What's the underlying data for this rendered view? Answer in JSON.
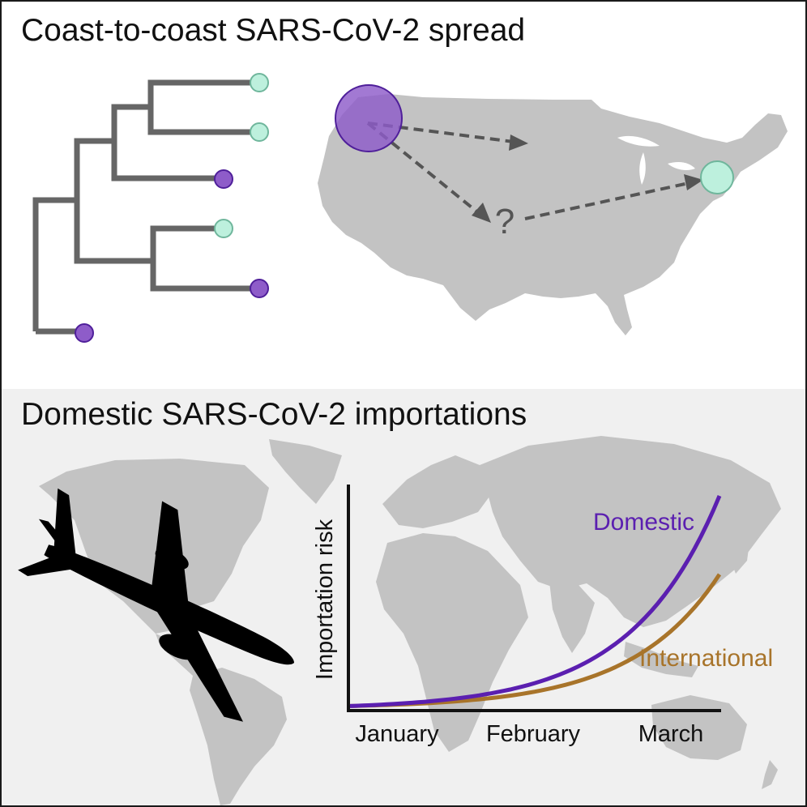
{
  "top_panel": {
    "title": "Coast-to-coast SARS-CoV-2 spread"
  },
  "bottom_panel": {
    "title": "Domestic SARS-CoV-2 importations"
  },
  "map": {
    "unknown_route_label": "?"
  },
  "chart_data": {
    "type": "line",
    "ylabel": "Importation risk",
    "categories": [
      "January",
      "February",
      "March"
    ],
    "series": [
      {
        "name": "Domestic",
        "color": "#5b1fb0",
        "values": [
          0.01,
          0.08,
          1.0
        ]
      },
      {
        "name": "International",
        "color": "#a8742a",
        "values": [
          0.01,
          0.08,
          0.63
        ]
      }
    ]
  },
  "colors": {
    "purple": "#8e5cc9",
    "purple_stroke": "#4f1f9a",
    "teal": "#bdf0dd",
    "teal_stroke": "#6fb69c",
    "tree": "#666666",
    "land": "#c3c3c3",
    "axis": "#111111"
  },
  "icons": [
    "phylogenetic-tree-icon",
    "us-map-icon",
    "world-map-icon",
    "airplane-icon"
  ]
}
